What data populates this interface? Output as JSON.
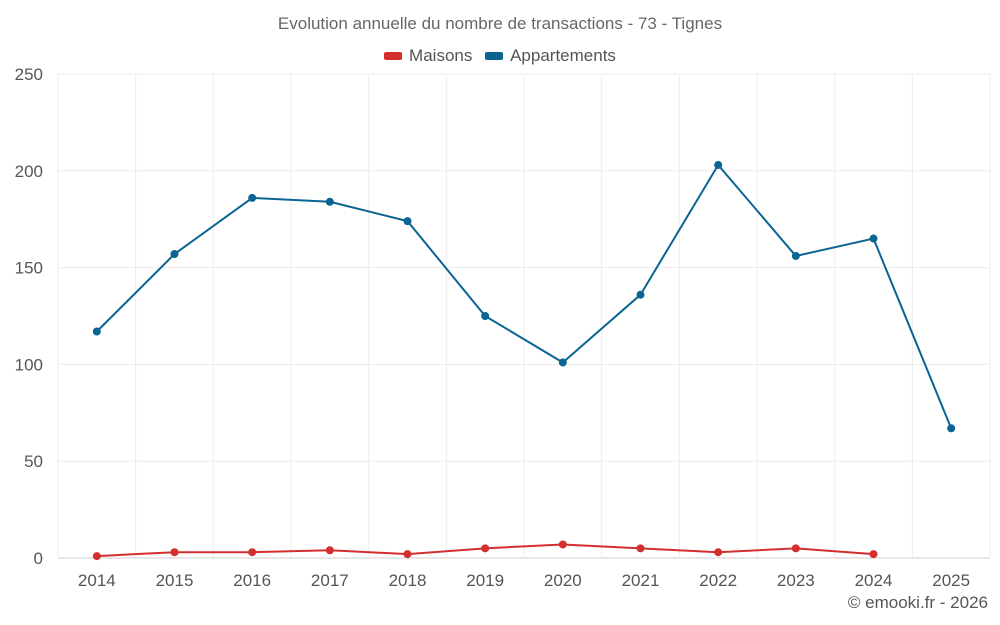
{
  "chart_data": {
    "type": "line",
    "title": "Evolution annuelle du nombre de transactions - 73 - Tignes",
    "categories": [
      "2014",
      "2015",
      "2016",
      "2017",
      "2018",
      "2019",
      "2020",
      "2021",
      "2022",
      "2023",
      "2024",
      "2025"
    ],
    "ylim": [
      0,
      250
    ],
    "yticks": [
      0,
      50,
      100,
      150,
      200,
      250
    ],
    "grid": true,
    "legend_position": "top-center",
    "series": [
      {
        "name": "Maisons",
        "color": "#d32f2f",
        "values": [
          1,
          3,
          3,
          4,
          2,
          5,
          7,
          5,
          3,
          5,
          2,
          null
        ]
      },
      {
        "name": "Appartements",
        "color": "#0a6494",
        "values": [
          117,
          157,
          186,
          184,
          174,
          125,
          101,
          136,
          203,
          156,
          165,
          67
        ]
      }
    ]
  },
  "credit": "© emooki.fr - 2026"
}
